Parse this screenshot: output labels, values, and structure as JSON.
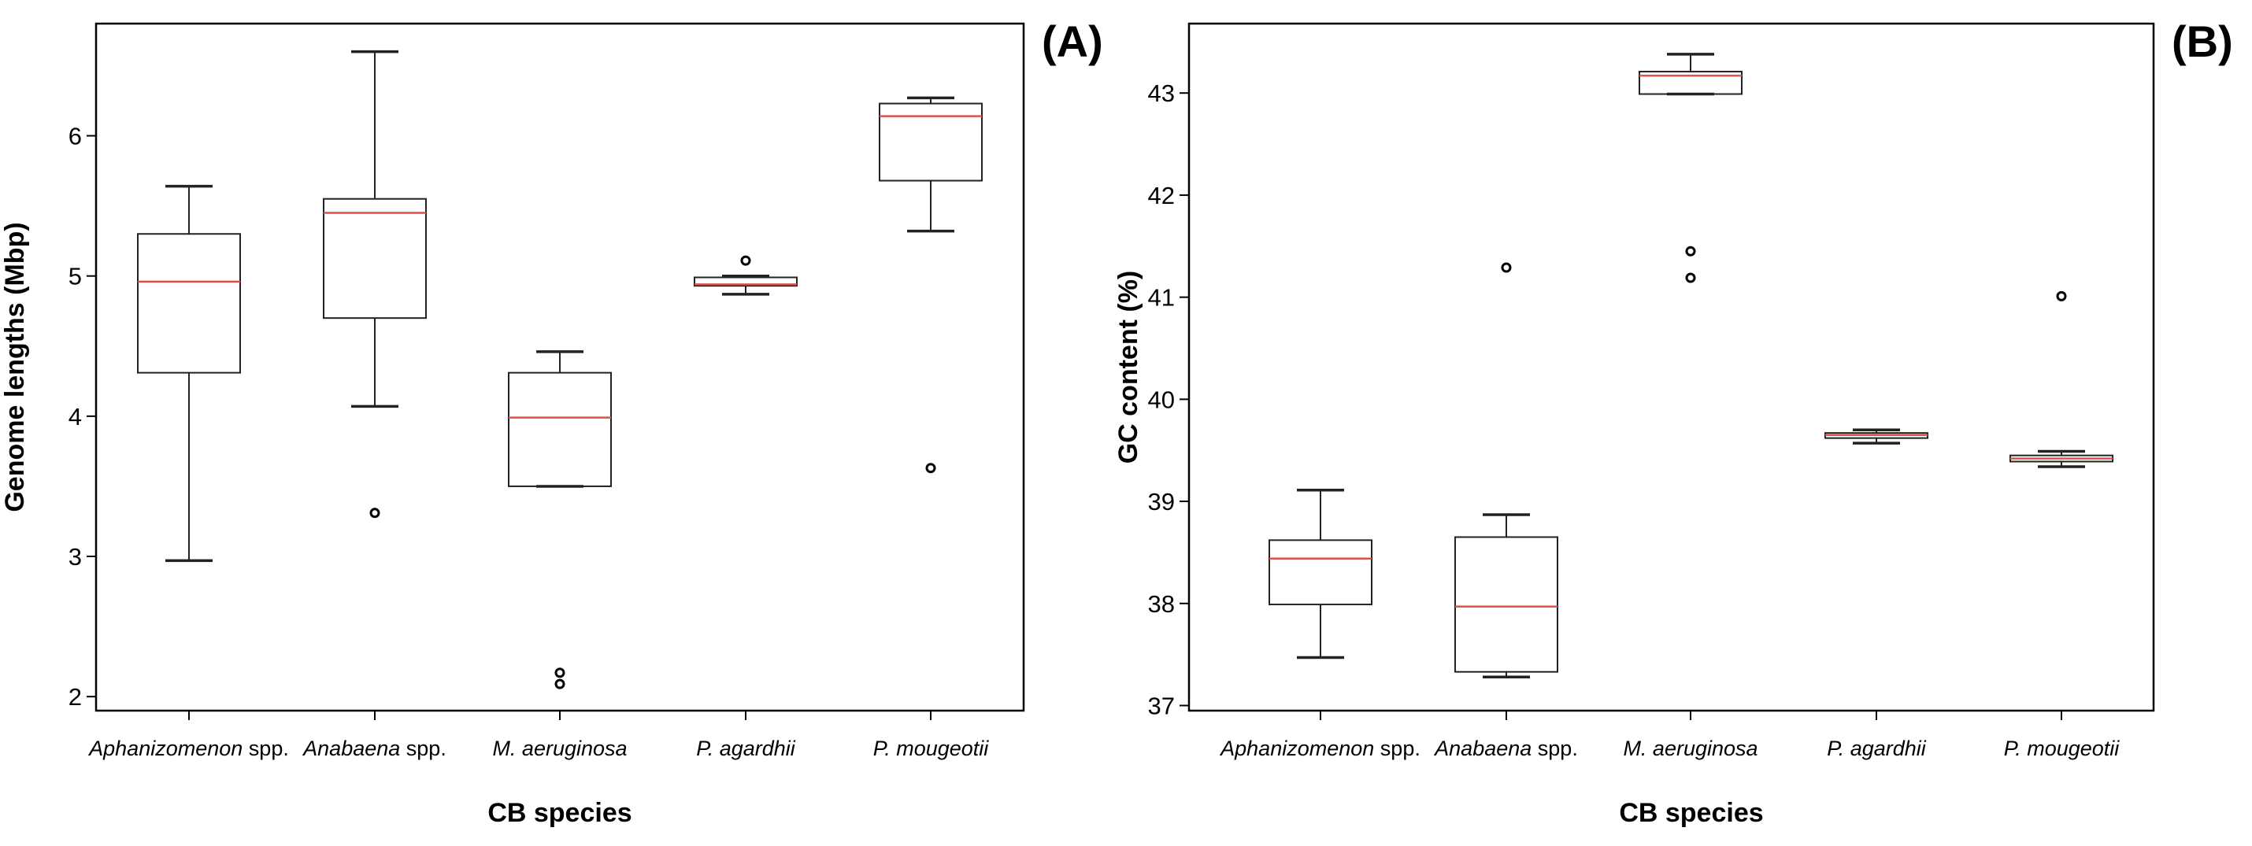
{
  "figure": {
    "median_color": "#e0504a",
    "line_color": "#222222"
  },
  "chart_data": [
    {
      "type": "box",
      "panel": "(A)",
      "title": "",
      "xlabel": "CB species",
      "ylabel": "Genome lengths (Mbp)",
      "ylim": [
        1.9,
        6.8
      ],
      "yticks": [
        2,
        3,
        4,
        5,
        6
      ],
      "categories": [
        {
          "italic": "Aphanizomenon",
          "suffix": " spp."
        },
        {
          "italic": "Anabaena",
          "suffix": " spp."
        },
        {
          "italic": "M. aeruginosa",
          "suffix": ""
        },
        {
          "italic": "P. agardhii",
          "suffix": ""
        },
        {
          "italic": "P. mougeotii",
          "suffix": ""
        }
      ],
      "boxes": [
        {
          "whisker_low": 2.97,
          "q1": 4.31,
          "median": 4.96,
          "q3": 5.3,
          "whisker_high": 5.64,
          "outliers": []
        },
        {
          "whisker_low": 4.07,
          "q1": 4.7,
          "median": 5.45,
          "q3": 5.55,
          "whisker_high": 6.6,
          "outliers": [
            3.31
          ]
        },
        {
          "whisker_low": 3.5,
          "q1": 3.5,
          "median": 3.99,
          "q3": 4.31,
          "whisker_high": 4.46,
          "outliers": [
            2.17,
            2.09
          ]
        },
        {
          "whisker_low": 4.87,
          "q1": 4.93,
          "median": 4.94,
          "q3": 4.99,
          "whisker_high": 5.0,
          "outliers": [
            5.11
          ]
        },
        {
          "whisker_low": 5.32,
          "q1": 5.68,
          "median": 6.14,
          "q3": 6.23,
          "whisker_high": 6.27,
          "outliers": [
            3.63
          ]
        }
      ]
    },
    {
      "type": "box",
      "panel": "(B)",
      "title": "",
      "xlabel": "CB species",
      "ylabel": "GC content (%)",
      "ylim": [
        36.95,
        43.68
      ],
      "yticks": [
        37,
        38,
        39,
        40,
        41,
        42,
        43
      ],
      "categories": [
        {
          "italic": "Aphanizomenon",
          "suffix": " spp."
        },
        {
          "italic": "Anabaena",
          "suffix": " spp."
        },
        {
          "italic": "M. aeruginosa",
          "suffix": ""
        },
        {
          "italic": "P. agardhii",
          "suffix": ""
        },
        {
          "italic": "P. mougeotii",
          "suffix": ""
        }
      ],
      "boxes": [
        {
          "whisker_low": 37.47,
          "q1": 37.99,
          "median": 38.44,
          "q3": 38.62,
          "whisker_high": 39.11,
          "outliers": []
        },
        {
          "whisker_low": 37.28,
          "q1": 37.33,
          "median": 37.97,
          "q3": 38.65,
          "whisker_high": 38.87,
          "outliers": [
            41.29
          ]
        },
        {
          "whisker_low": 42.99,
          "q1": 42.99,
          "median": 43.17,
          "q3": 43.21,
          "whisker_high": 43.38,
          "outliers": [
            41.45,
            41.19
          ]
        },
        {
          "whisker_low": 39.57,
          "q1": 39.62,
          "median": 39.65,
          "q3": 39.67,
          "whisker_high": 39.7,
          "outliers": []
        },
        {
          "whisker_low": 39.34,
          "q1": 39.39,
          "median": 39.42,
          "q3": 39.45,
          "whisker_high": 39.49,
          "outliers": [
            41.01
          ]
        }
      ]
    }
  ]
}
